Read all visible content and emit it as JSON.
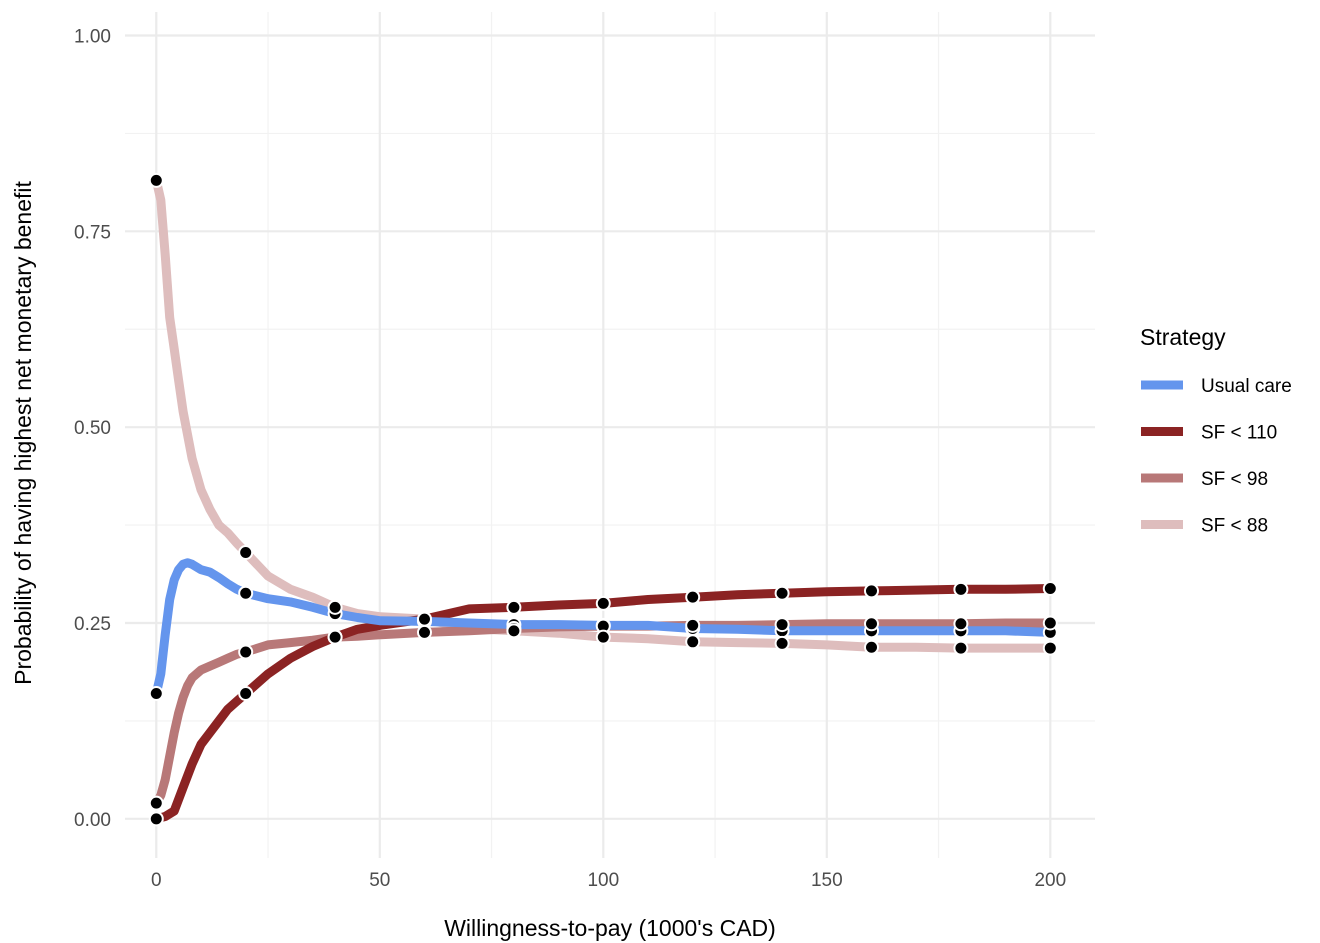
{
  "chart_data": {
    "type": "line",
    "title": "",
    "xlabel": "Willingness-to-pay (1000's CAD)",
    "ylabel": "Probability of having highest net monetary benefit",
    "xlim": [
      -7,
      210
    ],
    "ylim": [
      -0.05,
      1.03
    ],
    "x_ticks": [
      0,
      50,
      100,
      150,
      200
    ],
    "x_tick_labels": [
      "0",
      "50",
      "100",
      "150",
      "200"
    ],
    "y_ticks": [
      0,
      0.25,
      0.5,
      0.75,
      1
    ],
    "y_tick_labels": [
      "0.00",
      "0.25",
      "0.50",
      "0.75",
      "1.00"
    ],
    "grid": true,
    "legend": {
      "title": "Strategy",
      "position": "right"
    },
    "series": [
      {
        "name": "Usual care",
        "color": "#6495ED",
        "x": [
          0,
          1,
          2,
          3,
          4,
          5,
          6,
          7,
          8,
          10,
          12,
          14,
          16,
          18,
          20,
          25,
          30,
          35,
          40,
          45,
          50,
          60,
          70,
          80,
          90,
          100,
          110,
          120,
          130,
          140,
          150,
          160,
          170,
          180,
          190,
          200
        ],
        "y": [
          0.16,
          0.185,
          0.235,
          0.28,
          0.305,
          0.318,
          0.325,
          0.327,
          0.325,
          0.318,
          0.315,
          0.308,
          0.3,
          0.293,
          0.288,
          0.281,
          0.277,
          0.27,
          0.262,
          0.257,
          0.253,
          0.252,
          0.25,
          0.248,
          0.248,
          0.247,
          0.247,
          0.243,
          0.242,
          0.24,
          0.24,
          0.24,
          0.24,
          0.24,
          0.24,
          0.238
        ]
      },
      {
        "name": "SF < 110",
        "color": "#8B2323",
        "x": [
          0,
          2,
          4,
          6,
          8,
          10,
          12,
          14,
          16,
          18,
          20,
          25,
          30,
          35,
          40,
          45,
          50,
          60,
          70,
          80,
          90,
          100,
          110,
          120,
          130,
          140,
          150,
          160,
          170,
          180,
          190,
          200
        ],
        "y": [
          0.0,
          0.003,
          0.01,
          0.04,
          0.07,
          0.095,
          0.11,
          0.125,
          0.14,
          0.15,
          0.16,
          0.185,
          0.205,
          0.22,
          0.232,
          0.242,
          0.247,
          0.255,
          0.268,
          0.27,
          0.273,
          0.275,
          0.28,
          0.283,
          0.286,
          0.288,
          0.29,
          0.291,
          0.292,
          0.293,
          0.293,
          0.294
        ]
      },
      {
        "name": "SF < 98",
        "color": "#B87878",
        "x": [
          0,
          1,
          2,
          3,
          4,
          5,
          6,
          7,
          8,
          10,
          12,
          14,
          16,
          18,
          20,
          25,
          30,
          35,
          40,
          45,
          50,
          60,
          70,
          80,
          90,
          100,
          110,
          120,
          130,
          140,
          150,
          160,
          170,
          180,
          190,
          200
        ],
        "y": [
          0.02,
          0.03,
          0.05,
          0.08,
          0.11,
          0.135,
          0.155,
          0.17,
          0.18,
          0.19,
          0.195,
          0.2,
          0.205,
          0.21,
          0.213,
          0.222,
          0.225,
          0.228,
          0.232,
          0.233,
          0.235,
          0.238,
          0.24,
          0.243,
          0.245,
          0.246,
          0.246,
          0.247,
          0.247,
          0.248,
          0.249,
          0.249,
          0.249,
          0.249,
          0.25,
          0.25
        ]
      },
      {
        "name": "SF < 88",
        "color": "#DEBDBD",
        "x": [
          0,
          1,
          2,
          3,
          4,
          5,
          6,
          7,
          8,
          10,
          12,
          14,
          16,
          18,
          20,
          25,
          30,
          35,
          40,
          45,
          50,
          60,
          70,
          80,
          90,
          100,
          110,
          120,
          130,
          140,
          150,
          160,
          170,
          180,
          190,
          200
        ],
        "y": [
          0.815,
          0.79,
          0.72,
          0.64,
          0.6,
          0.56,
          0.52,
          0.49,
          0.46,
          0.42,
          0.395,
          0.375,
          0.365,
          0.352,
          0.34,
          0.31,
          0.293,
          0.283,
          0.27,
          0.262,
          0.258,
          0.255,
          0.243,
          0.24,
          0.237,
          0.232,
          0.23,
          0.226,
          0.225,
          0.224,
          0.222,
          0.219,
          0.219,
          0.218,
          0.218,
          0.218
        ]
      }
    ],
    "markers": {
      "x": [
        0,
        20,
        40,
        60,
        80,
        100,
        120,
        140,
        160,
        180,
        200
      ],
      "color": "#000000"
    }
  }
}
